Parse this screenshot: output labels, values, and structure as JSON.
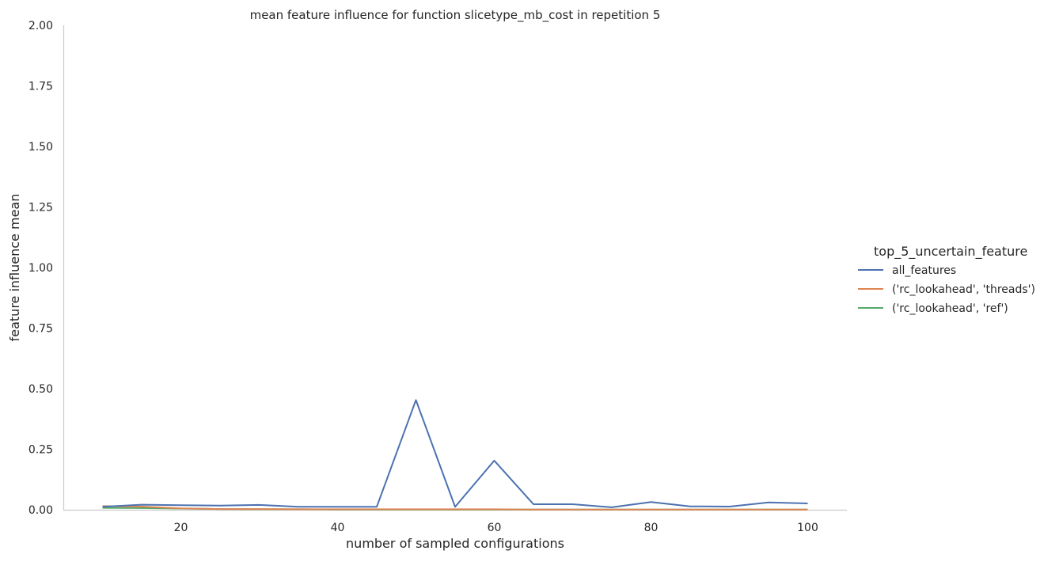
{
  "chart_data": {
    "type": "line",
    "title": "mean feature influence for function slicetype_mb_cost in repetition 5",
    "xlabel": "number of sampled configurations",
    "ylabel": "feature influence mean",
    "xlim": [
      5,
      105
    ],
    "ylim": [
      0,
      2.0
    ],
    "xticks": [
      20,
      40,
      60,
      80,
      100
    ],
    "yticks": [
      "0.00",
      "0.25",
      "0.50",
      "0.75",
      "1.00",
      "1.25",
      "1.50",
      "1.75",
      "2.00"
    ],
    "grid": false,
    "legend_title": "top_5_uncertain_feature",
    "legend_position": "right",
    "x": [
      10,
      15,
      20,
      25,
      30,
      35,
      40,
      45,
      50,
      55,
      60,
      65,
      70,
      75,
      80,
      85,
      90,
      95,
      100
    ],
    "series": [
      {
        "name": "all_features",
        "color": "#4c72b0",
        "values": [
          0.012,
          0.021,
          0.019,
          0.017,
          0.02,
          0.012,
          0.012,
          0.012,
          0.453,
          0.012,
          0.203,
          0.023,
          0.023,
          0.01,
          0.032,
          0.014,
          0.013,
          0.03,
          0.026
        ]
      },
      {
        "name": "('rc_lookahead', 'threads')",
        "color": "#dd8452",
        "values": [
          0.015,
          0.013,
          0.006,
          0.003,
          0.003,
          0.002,
          0.002,
          0.002,
          0.002,
          0.002,
          0.002,
          0.001,
          0.001,
          0.001,
          0.001,
          0.001,
          0.001,
          0.001,
          0.001
        ]
      },
      {
        "name": "('rc_lookahead', 'ref')",
        "color": "#55a868",
        "values": [
          0.008,
          0.007,
          0.005,
          0.003,
          0.002,
          0.002,
          0.001,
          0.001,
          0.001,
          0.001,
          0.001,
          0.001,
          0.001,
          0.001,
          0.001,
          0.001,
          0.001,
          0.001,
          0.001
        ]
      }
    ]
  }
}
